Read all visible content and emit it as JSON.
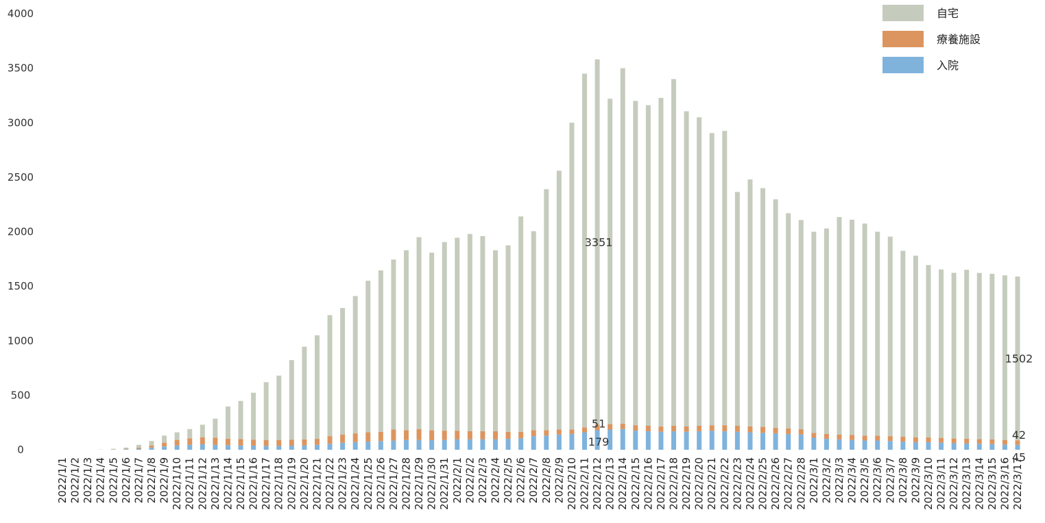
{
  "chart_data": {
    "type": "bar",
    "stacked": true,
    "title": "",
    "xlabel": "",
    "ylabel": "",
    "ylim": [
      0,
      4000
    ],
    "yticks": [
      0,
      500,
      1000,
      1500,
      2000,
      2500,
      3000,
      3500,
      4000
    ],
    "grid": false,
    "legend_position": "top-right",
    "categories": [
      "2022/1/1",
      "2022/1/2",
      "2022/1/3",
      "2022/1/4",
      "2022/1/5",
      "2022/1/6",
      "2022/1/7",
      "2022/1/8",
      "2022/1/9",
      "2022/1/10",
      "2022/1/11",
      "2022/1/12",
      "2022/1/13",
      "2022/1/14",
      "2022/1/15",
      "2022/1/16",
      "2022/1/17",
      "2022/1/18",
      "2022/1/19",
      "2022/1/20",
      "2022/1/21",
      "2022/1/22",
      "2022/1/23",
      "2022/1/24",
      "2022/1/25",
      "2022/1/26",
      "2022/1/27",
      "2022/1/28",
      "2022/1/29",
      "2022/1/30",
      "2022/1/31",
      "2022/2/1",
      "2022/2/2",
      "2022/2/3",
      "2022/2/4",
      "2022/2/5",
      "2022/2/6",
      "2022/2/7",
      "2022/2/8",
      "2022/2/9",
      "2022/2/10",
      "2022/2/11",
      "2022/2/12",
      "2022/2/13",
      "2022/2/14",
      "2022/2/15",
      "2022/2/16",
      "2022/2/17",
      "2022/2/18",
      "2022/2/19",
      "2022/2/20",
      "2022/2/21",
      "2022/2/22",
      "2022/2/23",
      "2022/2/24",
      "2022/2/25",
      "2022/2/26",
      "2022/2/27",
      "2022/2/28",
      "2022/3/1",
      "2022/3/2",
      "2022/3/3",
      "2022/3/4",
      "2022/3/5",
      "2022/3/6",
      "2022/3/7",
      "2022/3/8",
      "2022/3/9",
      "2022/3/10",
      "2022/3/11",
      "2022/3/12",
      "2022/3/13",
      "2022/3/14",
      "2022/3/15",
      "2022/3/16",
      "2022/3/17"
    ],
    "series": [
      {
        "name": "入院",
        "color": "#7fb3dc",
        "values": [
          0,
          0,
          0,
          0,
          2,
          5,
          10,
          20,
          30,
          40,
          45,
          50,
          45,
          42,
          40,
          38,
          35,
          35,
          38,
          40,
          45,
          55,
          65,
          70,
          75,
          80,
          85,
          90,
          90,
          88,
          90,
          95,
          95,
          95,
          95,
          100,
          105,
          125,
          130,
          140,
          145,
          160,
          179,
          185,
          190,
          175,
          170,
          165,
          170,
          165,
          170,
          175,
          170,
          165,
          160,
          155,
          150,
          145,
          140,
          110,
          100,
          95,
          90,
          85,
          85,
          80,
          75,
          70,
          70,
          65,
          60,
          58,
          55,
          52,
          48,
          45
        ]
      },
      {
        "name": "療養施設",
        "color": "#dc955f",
        "values": [
          0,
          0,
          0,
          0,
          2,
          5,
          10,
          20,
          35,
          50,
          60,
          65,
          65,
          60,
          58,
          55,
          55,
          55,
          55,
          55,
          55,
          70,
          75,
          80,
          85,
          85,
          100,
          90,
          100,
          90,
          85,
          80,
          75,
          75,
          75,
          65,
          60,
          55,
          50,
          45,
          40,
          45,
          51,
          50,
          50,
          50,
          50,
          48,
          50,
          50,
          50,
          50,
          55,
          55,
          55,
          55,
          52,
          50,
          48,
          45,
          45,
          45,
          45,
          45,
          45,
          45,
          45,
          45,
          44,
          44,
          43,
          43,
          42,
          42,
          42,
          42
        ]
      },
      {
        "name": "自宅",
        "color": "#c5ccbd",
        "values": [
          0,
          0,
          0,
          2,
          5,
          10,
          25,
          40,
          65,
          70,
          85,
          115,
          175,
          295,
          350,
          430,
          530,
          590,
          730,
          850,
          950,
          1110,
          1160,
          1260,
          1390,
          1480,
          1560,
          1650,
          1760,
          1630,
          1730,
          1770,
          1810,
          1790,
          1660,
          1710,
          1975,
          1825,
          2210,
          2375,
          2815,
          3245,
          3351,
          2985,
          3260,
          2975,
          2940,
          3015,
          3180,
          2890,
          2830,
          2680,
          2700,
          2145,
          2265,
          2190,
          2095,
          1975,
          1920,
          1845,
          1885,
          1995,
          1975,
          1945,
          1870,
          1830,
          1705,
          1665,
          1580,
          1545,
          1520,
          1550,
          1525,
          1520,
          1510,
          1502
        ]
      }
    ],
    "data_labels": [
      {
        "category": "2022/2/12",
        "series": "自宅",
        "text": "3351"
      },
      {
        "category": "2022/2/12",
        "series": "療養施設",
        "text": "51"
      },
      {
        "category": "2022/2/12",
        "series": "入院",
        "text": "179"
      },
      {
        "category": "2022/3/17",
        "series": "自宅",
        "text": "1502"
      },
      {
        "category": "2022/3/17",
        "series": "療養施設",
        "text": "42"
      },
      {
        "category": "2022/3/17",
        "series": "入院",
        "text": "45"
      }
    ]
  }
}
